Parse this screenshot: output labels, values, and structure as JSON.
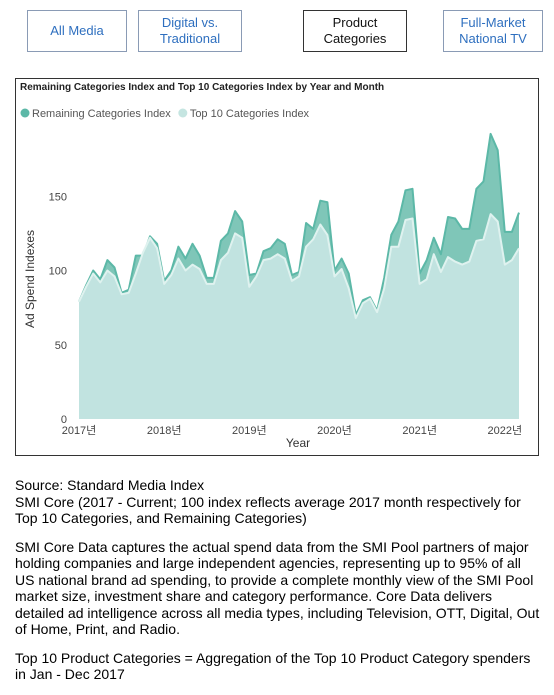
{
  "buttons": [
    "All Media",
    "Digital vs. Traditional",
    "Product Categories",
    "Full-Market National TV"
  ],
  "chart_data": {
    "type": "area",
    "title": "Remaining Categories Index and Top 10 Categories Index by Year and Month",
    "xlabel": "Year",
    "ylabel": "Ad Spend Indexes",
    "categories": [
      "2017년",
      null,
      null,
      null,
      null,
      null,
      null,
      null,
      null,
      null,
      null,
      null,
      "2018년",
      null,
      null,
      null,
      null,
      null,
      null,
      null,
      null,
      null,
      null,
      null,
      "2019년",
      null,
      null,
      null,
      null,
      null,
      null,
      null,
      null,
      null,
      null,
      null,
      "2020년",
      null,
      null,
      null,
      null,
      null,
      null,
      null,
      null,
      null,
      null,
      null,
      "2021년",
      null,
      null,
      null,
      null,
      null,
      null,
      null,
      null,
      null,
      null,
      null,
      "2022년",
      null,
      null
    ],
    "series": [
      {
        "name": "Remaining Categories Index",
        "color": "#5cb8a7",
        "values": [
          79,
          90,
          100,
          94,
          107,
          102,
          85,
          87,
          110,
          110,
          123,
          118,
          93,
          100,
          116,
          108,
          118,
          110,
          95,
          95,
          120,
          125,
          140,
          133,
          97,
          98,
          113,
          115,
          121,
          118,
          97,
          99,
          132,
          128,
          147,
          146,
          100,
          108,
          98,
          70,
          80,
          82,
          73,
          95,
          124,
          133,
          154,
          155,
          98,
          107,
          122,
          111,
          136,
          135,
          128,
          128,
          155,
          160,
          192,
          181,
          126,
          126,
          139
        ]
      },
      {
        "name": "Top 10 Categories Index",
        "color": "#c5e5e1",
        "values": [
          79,
          89,
          98,
          92,
          100,
          96,
          84,
          85,
          98,
          112,
          122,
          115,
          91,
          97,
          108,
          100,
          104,
          101,
          91,
          91,
          107,
          112,
          125,
          122,
          89,
          96,
          107,
          108,
          111,
          108,
          93,
          96,
          116,
          121,
          131,
          124,
          96,
          101,
          88,
          68,
          78,
          81,
          72,
          88,
          116,
          116,
          134,
          135,
          91,
          94,
          111,
          99,
          109,
          106,
          104,
          106,
          120,
          121,
          138,
          133,
          104,
          107,
          115
        ]
      }
    ],
    "ylim": [
      0,
      200
    ],
    "yticks": [
      0,
      50,
      100,
      150
    ],
    "grid": false,
    "legend": "top-left"
  },
  "notes": [
    "Source: Standard Media Index",
    "SMI Core (2017 - Current; 100 index reflects average 2017 month respectively for Top 10 Categories, and Remaining Categories)",
    "SMI Core Data captures the actual spend data from the SMI Pool partners of major holding companies and large independent agencies, representing up to 95% of all US national brand ad spending, to provide a complete monthly view of the SMI Pool market size, investment share and category performance. Core Data delivers detailed ad intelligence across all media types, including Television, OTT, Digital, Out of Home, Print, and Radio.",
    "Top 10 Product Categories = Aggregation of the Top 10 Product Category spenders in Jan - Dec 2017"
  ]
}
